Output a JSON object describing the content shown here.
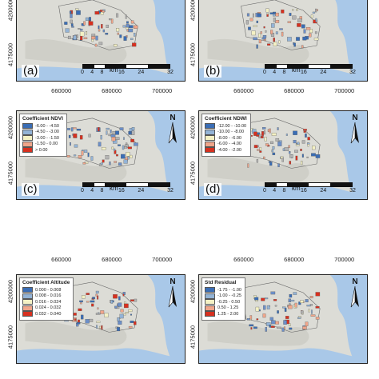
{
  "colors": {
    "land": "#dcdcd6",
    "sea": "#a9c8e8",
    "border": "#222222"
  },
  "x_ticks": [
    "660000",
    "680000",
    "700000"
  ],
  "y_ticks": [
    "4200000",
    "4175000"
  ],
  "scale": {
    "labels": [
      "0",
      "4",
      "8",
      "16",
      "24",
      "32"
    ],
    "unit": "km"
  },
  "north_label": "N",
  "panels": [
    {
      "label": "(a)",
      "legend": null
    },
    {
      "label": "(b)",
      "legend": null
    },
    {
      "label": "(c)",
      "legend": {
        "title": "Coefficient NDVI",
        "items": [
          {
            "label": "-6.00 - -4.50",
            "color": "#3a6db5"
          },
          {
            "label": "-4.50 - -3.00",
            "color": "#93b3d6"
          },
          {
            "label": "-3.00 - -1.50",
            "color": "#f4f1c4"
          },
          {
            "label": "-1.50 - 0.00",
            "color": "#f0a58a"
          },
          {
            "label": "> 0.00",
            "color": "#d7301f"
          }
        ]
      }
    },
    {
      "label": "(d)",
      "legend": {
        "title": "Coefficient NDWI",
        "items": [
          {
            "label": "-12.00 - -10.00",
            "color": "#3a6db5"
          },
          {
            "label": "-10.00 - -8.00",
            "color": "#93b3d6"
          },
          {
            "label": "-8.00 - -6.00",
            "color": "#f4f1c4"
          },
          {
            "label": "-6.00 - -4.00",
            "color": "#f0a58a"
          },
          {
            "label": "-4.00 - -2.00",
            "color": "#d7301f"
          }
        ]
      }
    },
    {
      "label": "",
      "legend": {
        "title": "Coefficient Altitude",
        "items": [
          {
            "label": "0.000 - 0.008",
            "color": "#3a6db5"
          },
          {
            "label": "0.008 - 0.016",
            "color": "#93b3d6"
          },
          {
            "label": "0.016 - 0.024",
            "color": "#f4f1c4"
          },
          {
            "label": "0.024 - 0.032",
            "color": "#f0a58a"
          },
          {
            "label": "0.032 - 0.040",
            "color": "#d7301f"
          }
        ]
      }
    },
    {
      "label": "",
      "legend": {
        "title": "Std Residual",
        "items": [
          {
            "label": "-1.75 - -1.00",
            "color": "#3a6db5"
          },
          {
            "label": "-1.00 - -0.25",
            "color": "#93b3d6"
          },
          {
            "label": "-0.25 - 0.50",
            "color": "#f4f1c4"
          },
          {
            "label": "0.50 - 1.25",
            "color": "#f0a58a"
          },
          {
            "label": "1.25 - 2.00",
            "color": "#d7301f"
          }
        ]
      }
    }
  ]
}
